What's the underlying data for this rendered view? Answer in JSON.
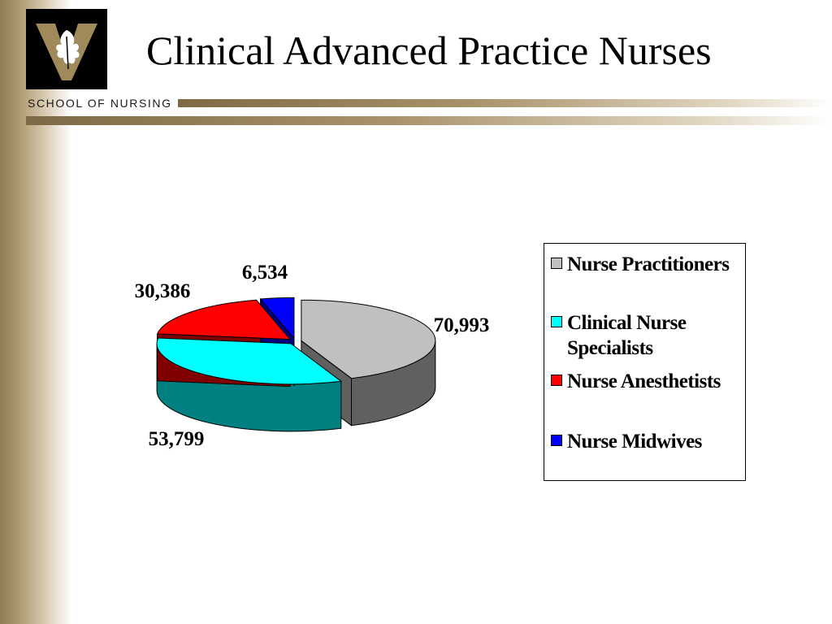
{
  "slide": {
    "title": "Clinical Advanced Practice Nurses",
    "school": "SCHOOL OF NURSING"
  },
  "logo": {
    "icon": "oak-leaf-v-icon",
    "background": "#000000",
    "letter_color": "#a08a5c"
  },
  "theme": {
    "accent": "#a08a5c",
    "band": "#8f7a52"
  },
  "chart_data": {
    "type": "pie",
    "style": "3d-exploded",
    "title": "",
    "legend_position": "right",
    "slices": [
      {
        "name": "Nurse Practitioners",
        "value": 70993,
        "label": "70,993",
        "color": "#c0c0c0",
        "side_color": "#606060"
      },
      {
        "name": "Clinical Nurse Specialists",
        "value": 53799,
        "label": "53,799",
        "color": "#00ffff",
        "side_color": "#008080"
      },
      {
        "name": "Nurse Anesthetists",
        "value": 30386,
        "label": "30,386",
        "color": "#ff0000",
        "side_color": "#800000"
      },
      {
        "name": "Nurse Midwives",
        "value": 6534,
        "label": "6,534",
        "color": "#0000ff",
        "side_color": "#000080"
      }
    ]
  }
}
